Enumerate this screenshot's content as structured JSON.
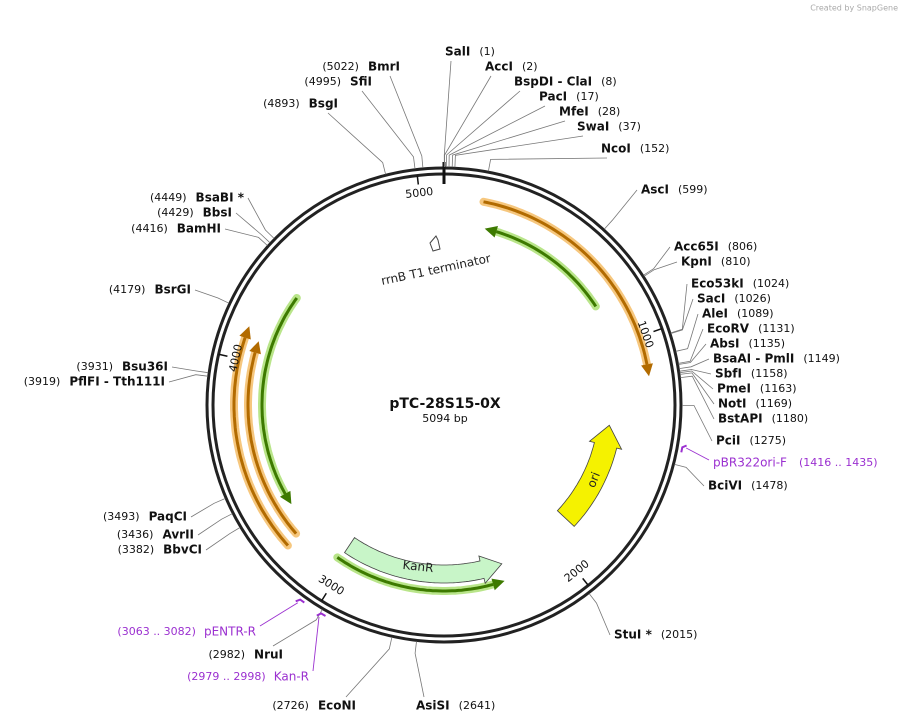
{
  "credit": "Created by SnapGene",
  "map": {
    "name": "pTC-28S15-0X",
    "length": "5094 bp",
    "ticks": [
      1000,
      2000,
      3000,
      4000,
      5000
    ]
  },
  "features": [
    {
      "label": "rrnB T1 terminator"
    },
    {
      "label": "ori"
    },
    {
      "label": "KanR"
    }
  ],
  "enzymes": [
    {
      "name": "SalI",
      "site": "(1)"
    },
    {
      "name": "AccI",
      "site": "(2)"
    },
    {
      "name": "BspDI - ClaI",
      "site": "(8)"
    },
    {
      "name": "PacI",
      "site": "(17)"
    },
    {
      "name": "MfeI",
      "site": "(28)"
    },
    {
      "name": "SwaI",
      "site": "(37)"
    },
    {
      "name": "NcoI",
      "site": "(152)"
    },
    {
      "name": "AscI",
      "site": "(599)"
    },
    {
      "name": "Acc65I",
      "site": "(806)"
    },
    {
      "name": "KpnI",
      "site": "(810)"
    },
    {
      "name": "Eco53kI",
      "site": "(1024)"
    },
    {
      "name": "SacI",
      "site": "(1026)"
    },
    {
      "name": "AleI",
      "site": "(1089)"
    },
    {
      "name": "EcoRV",
      "site": "(1131)"
    },
    {
      "name": "AbsI",
      "site": "(1135)"
    },
    {
      "name": "BsaAI - PmlI",
      "site": "(1149)"
    },
    {
      "name": "SbfI",
      "site": "(1158)"
    },
    {
      "name": "PmeI",
      "site": "(1163)"
    },
    {
      "name": "NotI",
      "site": "(1169)"
    },
    {
      "name": "BstAPI",
      "site": "(1180)"
    },
    {
      "name": "PciI",
      "site": "(1275)"
    },
    {
      "name": "BciVI",
      "site": "(1478)"
    },
    {
      "name": "StuI *",
      "site": "(2015)"
    },
    {
      "name": "AsiSI",
      "site": "(2641)"
    },
    {
      "name": "EcoNI",
      "site": "(2726)"
    },
    {
      "name": "NruI",
      "site": "(2982)"
    },
    {
      "name": "BbvCI",
      "site": "(3382)"
    },
    {
      "name": "AvrII",
      "site": "(3436)"
    },
    {
      "name": "PaqCI",
      "site": "(3493)"
    },
    {
      "name": "PflFI - Tth111I",
      "site": "(3919)"
    },
    {
      "name": "Bsu36I",
      "site": "(3931)"
    },
    {
      "name": "BsrGI",
      "site": "(4179)"
    },
    {
      "name": "BamHI",
      "site": "(4416)"
    },
    {
      "name": "BbsI",
      "site": "(4429)"
    },
    {
      "name": "BsaBI *",
      "site": "(4449)"
    },
    {
      "name": "BsgI",
      "site": "(4893)"
    },
    {
      "name": "SfiI",
      "site": "(4995)"
    },
    {
      "name": "BmrI",
      "site": "(5022)"
    }
  ],
  "primers": [
    {
      "name": "pBR322ori-F",
      "range": "(1416 .. 1435)"
    },
    {
      "name": "pENTR-R",
      "range": "(3063 .. 3082)"
    },
    {
      "name": "Kan-R",
      "range": "(2979 .. 2998)"
    }
  ]
}
